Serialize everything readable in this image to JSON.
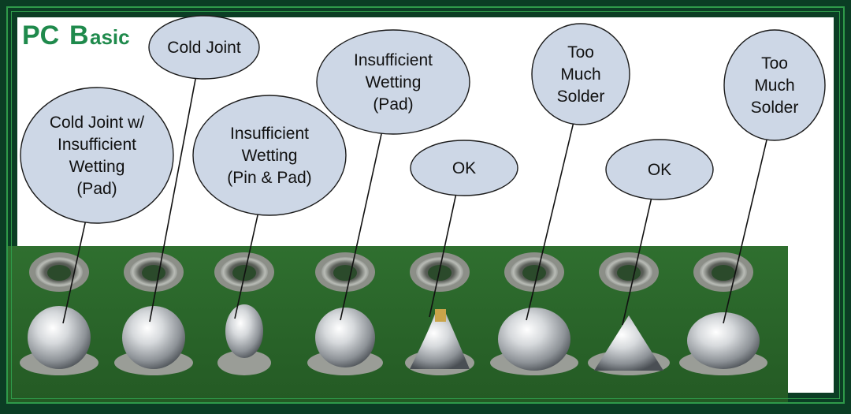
{
  "logo": {
    "brand_main": "PC",
    "brand_b": "B",
    "brand_rest": "asic"
  },
  "colors": {
    "frame": "#0b3d24",
    "board": "#2d6a2d",
    "bubble": "#cdd7e6",
    "logo": "#1f8a4c"
  },
  "labels": [
    {
      "id": "cold-joint-insufficient-wetting",
      "lines": [
        "Cold Joint w/",
        "Insufficient",
        "Wetting",
        "(Pad)"
      ]
    },
    {
      "id": "cold-joint",
      "lines": [
        "Cold Joint"
      ]
    },
    {
      "id": "insufficient-wetting-pin-pad",
      "lines": [
        "Insufficient",
        "Wetting",
        "(Pin & Pad)"
      ]
    },
    {
      "id": "insufficient-wetting-pad",
      "lines": [
        "Insufficient",
        "Wetting",
        "(Pad)"
      ]
    },
    {
      "id": "ok-1",
      "lines": [
        "OK"
      ]
    },
    {
      "id": "too-much-solder-1",
      "lines": [
        "Too",
        "Much",
        "Solder"
      ]
    },
    {
      "id": "ok-2",
      "lines": [
        "OK"
      ]
    },
    {
      "id": "too-much-solder-2",
      "lines": [
        "Too",
        "Much",
        "Solder"
      ]
    }
  ]
}
